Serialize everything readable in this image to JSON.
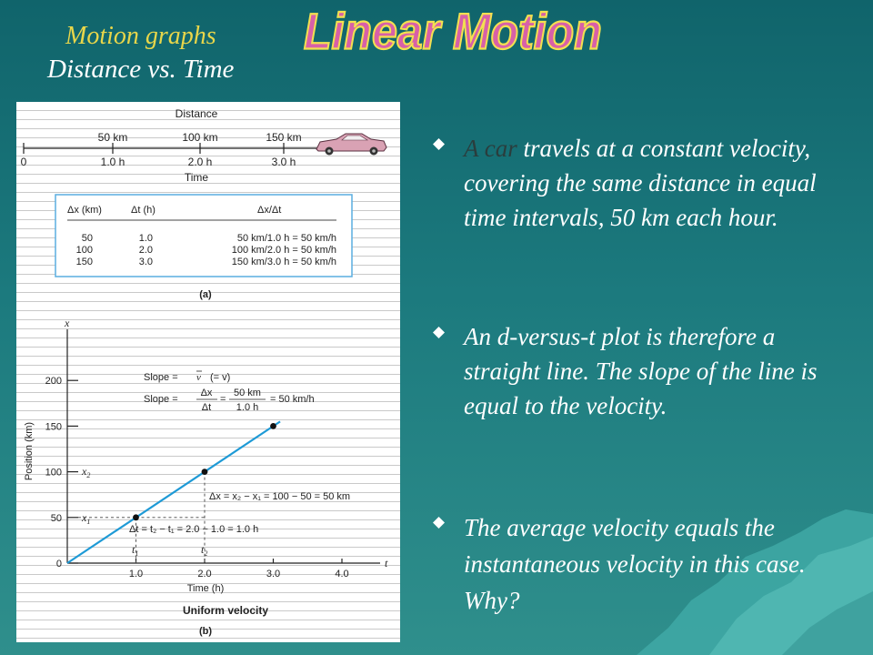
{
  "header": {
    "subtitle_top": "Motion graphs",
    "subtitle_bottom": "Distance vs. Time",
    "title": "Linear Motion"
  },
  "figure_a": {
    "axis_title_top": "Distance",
    "distance_labels": [
      "50 km",
      "100 km",
      "150 km"
    ],
    "zero_label": "0",
    "time_labels": [
      "1.0 h",
      "2.0 h",
      "3.0 h"
    ],
    "axis_title_bottom": "Time",
    "table": {
      "headers": [
        "Δx (km)",
        "Δt (h)",
        "Δx/Δt"
      ],
      "rows": [
        [
          "50",
          "1.0",
          "50 km/1.0 h = 50 km/h"
        ],
        [
          "100",
          "2.0",
          "100 km/2.0 h = 50 km/h"
        ],
        [
          "150",
          "3.0",
          "150 km/3.0 h = 50 km/h"
        ]
      ]
    },
    "caption": "(a)"
  },
  "figure_b": {
    "y_symbol": "x",
    "t_symbol": "t",
    "y_ticks": [
      "0",
      "50",
      "100",
      "150",
      "200"
    ],
    "x_ticks": [
      "1.0",
      "2.0",
      "3.0",
      "4.0"
    ],
    "ylabel": "Position (km)",
    "xlabel": "Time (h)",
    "title": "Uniform velocity",
    "caption": "(b)",
    "slope_line1_prefix": "Slope =",
    "slope_line1_v": "v",
    "slope_line1_suffix": "(= v)",
    "slope_line2_prefix": "Slope =",
    "slope_frac1_num": "Δx",
    "slope_frac1_den": "Δt",
    "slope_frac2_num": "50 km",
    "slope_frac2_den": "1.0 h",
    "slope_result": "= 50 km/h",
    "x1_label": "x",
    "x1_sub": "1",
    "x2_label": "x",
    "x2_sub": "2",
    "t1_label": "t",
    "t1_sub": "1",
    "t2_label": "t",
    "t2_sub": "2",
    "dx_annotation": "Δx = x₂ − x₁ = 100 − 50 = 50 km",
    "dt_annotation": "Δt = t₂ − t₁ = 2.0 − 1.0 = 1.0 h"
  },
  "chart_data": {
    "type": "line",
    "title": "Uniform velocity",
    "xlabel": "Time (h)",
    "ylabel": "Position (km)",
    "xlim": [
      0,
      4.5
    ],
    "ylim": [
      0,
      220
    ],
    "x_ticks": [
      1.0,
      2.0,
      3.0,
      4.0
    ],
    "y_ticks": [
      0,
      50,
      100,
      150,
      200
    ],
    "series": [
      {
        "x": [
          0,
          3.1
        ],
        "y": [
          0,
          155
        ],
        "color": "#1e9ad6"
      }
    ],
    "points": [
      {
        "x": 1.0,
        "y": 50
      },
      {
        "x": 2.0,
        "y": 100
      },
      {
        "x": 3.0,
        "y": 150
      }
    ]
  },
  "bullets": [
    {
      "highlight": "A car",
      "text": " travels at a constant velocity, covering the same distance in equal time intervals, 50 km each hour."
    },
    {
      "highlight": "",
      "text": "An d-versus-t plot is therefore a straight line. The slope of the line is equal to the velocity."
    },
    {
      "highlight": "",
      "text": "The average velocity equals the instantaneous velocity in this case. Why?"
    }
  ],
  "colors": {
    "title_fill": "#d860a8",
    "title_outline": "#f2e050",
    "subtitle_top": "#e8d64a",
    "line_color": "#1e9ad6",
    "table_border": "#5aaee0",
    "car_color": "#d9a2b4"
  }
}
